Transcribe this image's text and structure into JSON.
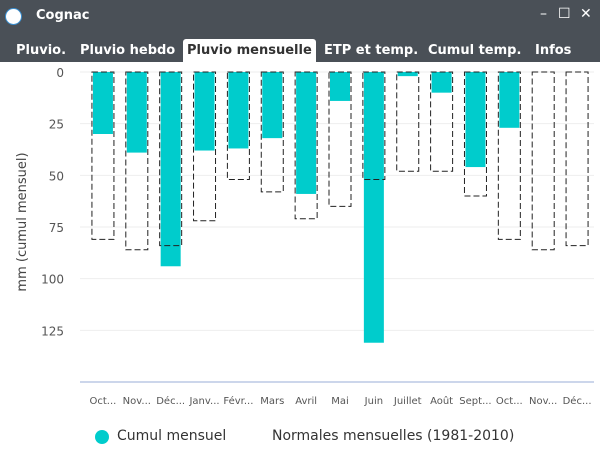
{
  "window": {
    "title": "Cognac",
    "minimize": "–",
    "maximize": "☐",
    "close": "✕"
  },
  "tabs": [
    {
      "label": "Pluvio."
    },
    {
      "label": "Pluvio hebdo"
    },
    {
      "label": "Pluvio mensuelle",
      "active": true
    },
    {
      "label": "ETP et temp."
    },
    {
      "label": "Cumul temp."
    },
    {
      "label": "Infos"
    }
  ],
  "chart_data": {
    "type": "bar",
    "ylabel": "mm (cumul mensuel)",
    "ylim": [
      0,
      150
    ],
    "y_inverted": true,
    "yticks": [
      0,
      25,
      50,
      75,
      100,
      125
    ],
    "categories": [
      "Oct...",
      "Nov...",
      "Déc...",
      "Janv...",
      "Févr...",
      "Mars",
      "Avril",
      "Mai",
      "Juin",
      "Juillet",
      "Août",
      "Sept...",
      "Oct...",
      "Nov...",
      "Déc..."
    ],
    "series": [
      {
        "name": "Cumul mensuel",
        "color": "#00cccc",
        "values": [
          30,
          39,
          94,
          38,
          37,
          32,
          59,
          14,
          131,
          2,
          10,
          46,
          27,
          0,
          0
        ]
      },
      {
        "name": "Normales mensuelles (1981-2010)",
        "style": "dashed-outline",
        "values": [
          81,
          86,
          84,
          72,
          52,
          58,
          71,
          65,
          52,
          48,
          48,
          60,
          81,
          86,
          84
        ]
      }
    ],
    "legend": "bottom"
  }
}
